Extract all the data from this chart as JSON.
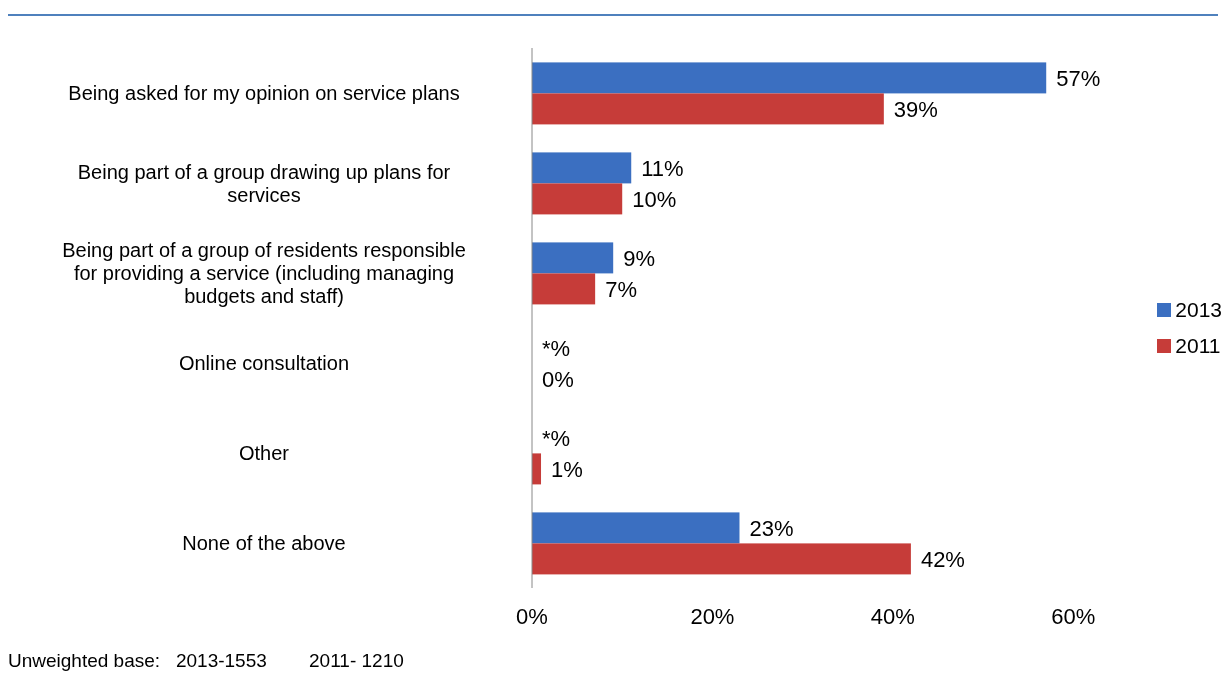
{
  "chart_data": {
    "type": "bar",
    "orientation": "horizontal",
    "categories": [
      "Being asked for my opinion on service plans",
      "Being part of a group drawing up plans for services",
      "Being part of a group of residents responsible for providing a service (including managing budgets and staff)",
      "Online consultation",
      "Other",
      "None of the above"
    ],
    "series": [
      {
        "name": "2013",
        "color": "#3b6fc1",
        "values": [
          57,
          11,
          9,
          0,
          0,
          23
        ],
        "value_labels": [
          "57%",
          "11%",
          "9%",
          "*%",
          "*%",
          "23%"
        ]
      },
      {
        "name": "2011",
        "color": "#c63c39",
        "values": [
          39,
          10,
          7,
          0,
          1,
          42
        ],
        "value_labels": [
          "39%",
          "10%",
          "7%",
          "0%",
          "1%",
          "42%"
        ]
      }
    ],
    "xlim": [
      0,
      60
    ],
    "xticks": [
      {
        "value": 0,
        "label": "0%"
      },
      {
        "value": 20,
        "label": "20%"
      },
      {
        "value": 40,
        "label": "40%"
      },
      {
        "value": 60,
        "label": "60%"
      }
    ],
    "grid": false,
    "legend": "right",
    "annotations": [
      "Unweighted base:   2013-1553        2011- 1210"
    ]
  }
}
